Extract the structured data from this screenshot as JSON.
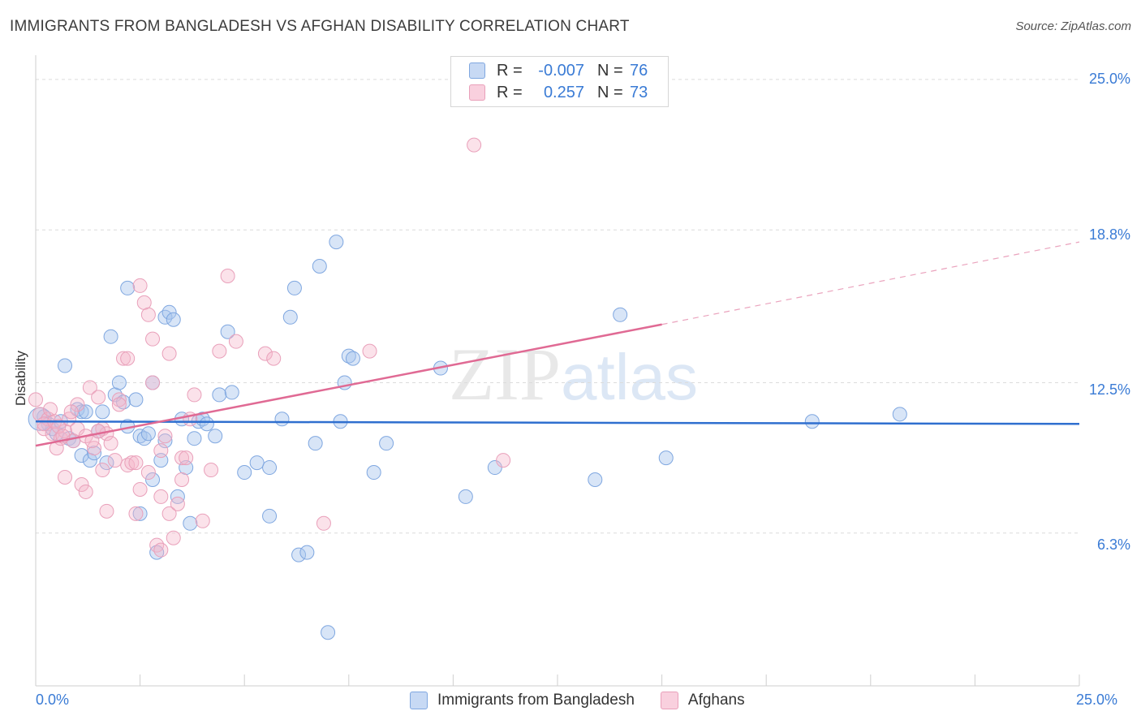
{
  "title": "IMMIGRANTS FROM BANGLADESH VS AFGHAN DISABILITY CORRELATION CHART",
  "source": "Source: ZipAtlas.com",
  "watermark": {
    "zip": "ZIP",
    "atlas": "atlas"
  },
  "legend_top": {
    "rows": [
      {
        "r_label": "R =",
        "r_value": "-0.007",
        "n_label": "N =",
        "n_value": "76"
      },
      {
        "r_label": "R =",
        "r_value": "0.257",
        "n_label": "N =",
        "n_value": "73"
      }
    ]
  },
  "legend_bottom": {
    "items": [
      {
        "label": "Immigrants from Bangladesh"
      },
      {
        "label": "Afghans"
      }
    ]
  },
  "chart_data": {
    "type": "scatter",
    "title": "IMMIGRANTS FROM BANGLADESH VS AFGHAN DISABILITY CORRELATION CHART",
    "xlabel": "",
    "ylabel": "Disability",
    "xlim": [
      0,
      25
    ],
    "ylim": [
      0,
      25.6
    ],
    "x_tick_labels": [
      "0.0%",
      "25.0%"
    ],
    "y_ticks": [
      6.3,
      12.5,
      18.8,
      25.0
    ],
    "y_tick_labels": [
      "6.3%",
      "12.5%",
      "18.8%",
      "25.0%"
    ],
    "grid": true,
    "legend_position": "top-center",
    "colors": {
      "bangladesh": "#a9c6ee",
      "bangladesh_line": "#2f6fcf",
      "afghans": "#f4b6cb",
      "afghans_line": "#e06a94"
    },
    "series": [
      {
        "name": "Immigrants from Bangladesh",
        "trend": {
          "x0": 0,
          "y0": 10.9,
          "x1": 25,
          "y1": 10.8
        },
        "points": [
          [
            0.2,
            11.1
          ],
          [
            0.3,
            10.8
          ],
          [
            0.4,
            10.6
          ],
          [
            0.5,
            10.4
          ],
          [
            0.6,
            10.9
          ],
          [
            0.7,
            13.2
          ],
          [
            0.8,
            10.2
          ],
          [
            0.9,
            10.1
          ],
          [
            1.0,
            11.4
          ],
          [
            1.1,
            9.5
          ],
          [
            1.1,
            11.3
          ],
          [
            1.2,
            11.3
          ],
          [
            1.3,
            9.3
          ],
          [
            1.4,
            9.6
          ],
          [
            1.5,
            10.5
          ],
          [
            1.6,
            11.3
          ],
          [
            1.7,
            9.2
          ],
          [
            1.8,
            14.4
          ],
          [
            1.9,
            12.0
          ],
          [
            2.0,
            12.5
          ],
          [
            2.1,
            11.7
          ],
          [
            2.2,
            10.7
          ],
          [
            2.2,
            16.4
          ],
          [
            2.4,
            11.8
          ],
          [
            2.5,
            10.3
          ],
          [
            2.5,
            7.1
          ],
          [
            2.6,
            10.2
          ],
          [
            2.7,
            10.4
          ],
          [
            2.8,
            8.5
          ],
          [
            2.8,
            12.5
          ],
          [
            2.9,
            5.5
          ],
          [
            3.0,
            9.3
          ],
          [
            3.1,
            10.1
          ],
          [
            3.1,
            15.2
          ],
          [
            3.2,
            15.4
          ],
          [
            3.3,
            15.1
          ],
          [
            3.4,
            7.8
          ],
          [
            3.5,
            11.0
          ],
          [
            3.6,
            9.0
          ],
          [
            3.7,
            6.7
          ],
          [
            3.8,
            10.2
          ],
          [
            3.9,
            10.9
          ],
          [
            4.0,
            11.0
          ],
          [
            4.1,
            10.8
          ],
          [
            4.3,
            10.3
          ],
          [
            4.4,
            12.0
          ],
          [
            4.6,
            14.6
          ],
          [
            4.7,
            12.1
          ],
          [
            5.0,
            8.8
          ],
          [
            5.3,
            9.2
          ],
          [
            5.6,
            9.0
          ],
          [
            5.6,
            7.0
          ],
          [
            5.9,
            11.0
          ],
          [
            6.1,
            15.2
          ],
          [
            6.2,
            16.4
          ],
          [
            6.3,
            5.4
          ],
          [
            6.5,
            5.5
          ],
          [
            6.7,
            10.0
          ],
          [
            6.8,
            17.3
          ],
          [
            7.0,
            2.2
          ],
          [
            7.2,
            18.3
          ],
          [
            7.3,
            10.9
          ],
          [
            7.4,
            12.5
          ],
          [
            7.5,
            13.6
          ],
          [
            7.6,
            13.5
          ],
          [
            8.1,
            8.8
          ],
          [
            8.4,
            10.0
          ],
          [
            9.7,
            13.1
          ],
          [
            10.3,
            7.8
          ],
          [
            11.0,
            9.0
          ],
          [
            13.4,
            8.5
          ],
          [
            14.0,
            15.3
          ],
          [
            15.1,
            9.4
          ],
          [
            18.6,
            10.9
          ],
          [
            20.7,
            11.2
          ],
          [
            0.1,
            11.0
          ]
        ]
      },
      {
        "name": "Afghans",
        "trend": {
          "x0": 0,
          "y0": 9.9,
          "x1": 15,
          "y1": 14.9
        },
        "trend_dashed": {
          "x0": 15,
          "y0": 14.9,
          "x1": 25,
          "y1": 18.3
        },
        "points": [
          [
            0.0,
            11.8
          ],
          [
            0.1,
            11.2
          ],
          [
            0.2,
            10.6
          ],
          [
            0.3,
            11.0
          ],
          [
            0.4,
            10.4
          ],
          [
            0.5,
            9.8
          ],
          [
            0.6,
            10.2
          ],
          [
            0.7,
            10.5
          ],
          [
            0.7,
            8.6
          ],
          [
            0.8,
            11.0
          ],
          [
            0.9,
            10.1
          ],
          [
            1.0,
            10.6
          ],
          [
            1.0,
            11.6
          ],
          [
            1.1,
            8.3
          ],
          [
            1.2,
            8.0
          ],
          [
            1.2,
            10.3
          ],
          [
            1.3,
            12.3
          ],
          [
            1.4,
            9.8
          ],
          [
            1.5,
            11.9
          ],
          [
            1.6,
            10.6
          ],
          [
            1.6,
            8.9
          ],
          [
            1.7,
            10.4
          ],
          [
            1.7,
            7.2
          ],
          [
            1.8,
            10.0
          ],
          [
            1.9,
            9.3
          ],
          [
            2.0,
            11.8
          ],
          [
            2.0,
            11.6
          ],
          [
            2.1,
            13.5
          ],
          [
            2.2,
            13.5
          ],
          [
            2.2,
            9.1
          ],
          [
            2.3,
            9.2
          ],
          [
            2.4,
            9.2
          ],
          [
            2.4,
            7.1
          ],
          [
            2.5,
            8.1
          ],
          [
            2.5,
            16.5
          ],
          [
            2.6,
            15.8
          ],
          [
            2.7,
            8.8
          ],
          [
            2.7,
            15.3
          ],
          [
            2.8,
            12.5
          ],
          [
            2.8,
            14.3
          ],
          [
            2.9,
            5.8
          ],
          [
            3.0,
            9.7
          ],
          [
            3.0,
            5.6
          ],
          [
            3.1,
            10.3
          ],
          [
            3.2,
            13.7
          ],
          [
            3.2,
            7.1
          ],
          [
            3.3,
            6.1
          ],
          [
            3.4,
            7.5
          ],
          [
            3.5,
            9.4
          ],
          [
            3.5,
            8.5
          ],
          [
            3.6,
            9.4
          ],
          [
            3.7,
            11.0
          ],
          [
            3.8,
            12.0
          ],
          [
            4.0,
            6.8
          ],
          [
            4.2,
            8.9
          ],
          [
            4.4,
            13.8
          ],
          [
            4.6,
            16.9
          ],
          [
            4.8,
            14.2
          ],
          [
            5.5,
            13.7
          ],
          [
            5.7,
            13.5
          ],
          [
            6.9,
            6.7
          ],
          [
            8.0,
            13.8
          ],
          [
            10.5,
            22.3
          ],
          [
            11.2,
            9.3
          ],
          [
            0.2,
            10.8
          ],
          [
            0.35,
            11.4
          ],
          [
            0.45,
            10.9
          ],
          [
            0.55,
            10.7
          ],
          [
            0.65,
            10.3
          ],
          [
            0.85,
            11.3
          ],
          [
            1.35,
            10.1
          ],
          [
            1.5,
            10.5
          ],
          [
            3.0,
            7.8
          ]
        ]
      }
    ]
  }
}
